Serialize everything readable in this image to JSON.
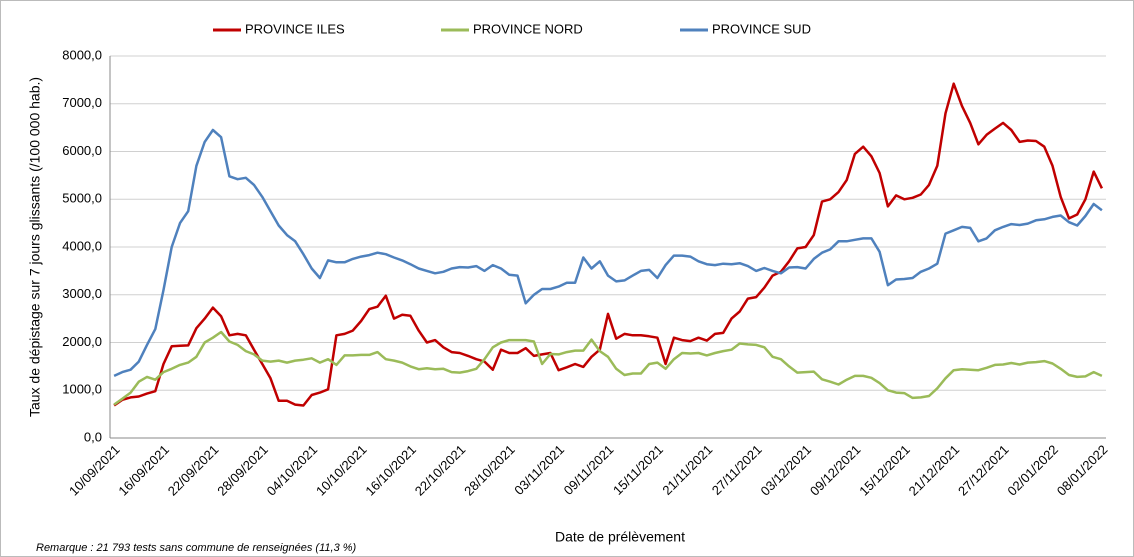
{
  "chart_data": {
    "type": "line",
    "y_label": "Taux de dépistage sur 7 jours glissants (/100 000 hab.)",
    "x_label": "Date de prélèvement",
    "note": "Remarque : 21 793 tests sans commune de renseignées (11,3 %)",
    "categories": [
      "10/09/2021",
      null,
      null,
      null,
      null,
      null,
      "16/09/2021",
      null,
      null,
      null,
      null,
      null,
      "22/09/2021",
      null,
      null,
      null,
      null,
      null,
      "28/09/2021",
      null,
      null,
      null,
      null,
      null,
      "04/10/2021",
      null,
      null,
      null,
      null,
      null,
      "10/10/2021",
      null,
      null,
      null,
      null,
      null,
      "16/10/2021",
      null,
      null,
      null,
      null,
      null,
      "22/10/2021",
      null,
      null,
      null,
      null,
      null,
      "28/10/2021",
      null,
      null,
      null,
      null,
      null,
      "03/11/2021",
      null,
      null,
      null,
      null,
      null,
      "09/11/2021",
      null,
      null,
      null,
      null,
      null,
      "15/11/2021",
      null,
      null,
      null,
      null,
      null,
      "21/11/2021",
      null,
      null,
      null,
      null,
      null,
      "27/11/2021",
      null,
      null,
      null,
      null,
      null,
      "03/12/2021",
      null,
      null,
      null,
      null,
      null,
      "09/12/2021",
      null,
      null,
      null,
      null,
      null,
      "15/12/2021",
      null,
      null,
      null,
      null,
      null,
      "21/12/2021",
      null,
      null,
      null,
      null,
      null,
      "27/12/2021",
      null,
      null,
      null,
      null,
      null,
      "02/01/2022",
      null,
      null,
      null,
      null,
      null,
      "08/01/2022"
    ],
    "series": [
      {
        "name": "PROVINCE ILES",
        "color": "#c00000",
        "values": [
          680,
          800,
          850,
          870,
          930,
          980,
          1550,
          1920,
          1930,
          1940,
          2300,
          2500,
          2730,
          2550,
          2150,
          2180,
          2150,
          1850,
          1550,
          1250,
          780,
          780,
          700,
          680,
          900,
          950,
          1020,
          2150,
          2180,
          2250,
          2450,
          2700,
          2750,
          2980,
          2500,
          2580,
          2560,
          2250,
          2000,
          2050,
          1900,
          1800,
          1780,
          1720,
          1650,
          1600,
          1430,
          1850,
          1780,
          1780,
          1880,
          1720,
          1750,
          1780,
          1420,
          1480,
          1550,
          1490,
          1700,
          1850,
          2600,
          2080,
          2180,
          2150,
          2150,
          2130,
          2100,
          1550,
          2100,
          2050,
          2030,
          2100,
          2040,
          2180,
          2200,
          2500,
          2650,
          2920,
          2950,
          3150,
          3400,
          3480,
          3700,
          3970,
          4000,
          4250,
          4950,
          5000,
          5150,
          5400,
          5950,
          6100,
          5900,
          5550,
          4850,
          5080,
          5000,
          5030,
          5100,
          5300,
          5700,
          6800,
          7420,
          6950,
          6600,
          6150,
          6350,
          6480,
          6600,
          6450,
          6200,
          6230,
          6220,
          6100,
          5700,
          5050,
          4600,
          4680,
          5000,
          5580,
          5230
        ]
      },
      {
        "name": "PROVINCE NORD",
        "color": "#9bbb59",
        "values": [
          700,
          820,
          950,
          1180,
          1280,
          1220,
          1380,
          1450,
          1530,
          1580,
          1700,
          2000,
          2100,
          2220,
          2020,
          1950,
          1820,
          1750,
          1620,
          1600,
          1620,
          1580,
          1620,
          1640,
          1670,
          1580,
          1650,
          1530,
          1730,
          1730,
          1740,
          1740,
          1800,
          1650,
          1620,
          1580,
          1500,
          1440,
          1460,
          1440,
          1450,
          1380,
          1370,
          1400,
          1450,
          1650,
          1900,
          2000,
          2050,
          2050,
          2050,
          2020,
          1550,
          1760,
          1750,
          1800,
          1830,
          1830,
          2060,
          1820,
          1700,
          1450,
          1320,
          1350,
          1350,
          1550,
          1580,
          1450,
          1650,
          1780,
          1770,
          1780,
          1730,
          1780,
          1820,
          1850,
          1980,
          1960,
          1950,
          1900,
          1700,
          1650,
          1500,
          1370,
          1380,
          1390,
          1230,
          1180,
          1120,
          1220,
          1300,
          1300,
          1260,
          1150,
          1000,
          950,
          940,
          840,
          850,
          880,
          1040,
          1250,
          1420,
          1440,
          1430,
          1420,
          1470,
          1530,
          1540,
          1570,
          1540,
          1580,
          1590,
          1610,
          1560,
          1450,
          1320,
          1280,
          1290,
          1380,
          1300
        ]
      },
      {
        "name": "PROVINCE SUD",
        "color": "#4f81bd",
        "values": [
          1300,
          1380,
          1430,
          1600,
          1950,
          2280,
          3100,
          4000,
          4500,
          4750,
          5700,
          6200,
          6450,
          6300,
          5480,
          5420,
          5450,
          5300,
          5050,
          4750,
          4450,
          4250,
          4120,
          3850,
          3550,
          3350,
          3720,
          3680,
          3680,
          3750,
          3800,
          3830,
          3880,
          3850,
          3780,
          3720,
          3640,
          3550,
          3500,
          3450,
          3480,
          3550,
          3580,
          3570,
          3600,
          3500,
          3620,
          3550,
          3420,
          3400,
          2820,
          3000,
          3120,
          3120,
          3170,
          3250,
          3250,
          3780,
          3550,
          3700,
          3400,
          3280,
          3300,
          3400,
          3500,
          3520,
          3350,
          3620,
          3820,
          3820,
          3800,
          3700,
          3640,
          3620,
          3650,
          3640,
          3660,
          3600,
          3500,
          3560,
          3500,
          3450,
          3570,
          3580,
          3550,
          3750,
          3880,
          3950,
          4120,
          4120,
          4150,
          4180,
          4180,
          3900,
          3200,
          3320,
          3330,
          3350,
          3480,
          3550,
          3650,
          4280,
          4350,
          4420,
          4400,
          4120,
          4180,
          4350,
          4420,
          4480,
          4460,
          4490,
          4560,
          4580,
          4630,
          4660,
          4520,
          4450,
          4650,
          4900,
          4770
        ]
      }
    ],
    "ylim": [
      0,
      8000
    ],
    "yticks": [
      {
        "value": 0,
        "label": "0,0"
      },
      {
        "value": 1000,
        "label": "1000,0"
      },
      {
        "value": 2000,
        "label": "2000,0"
      },
      {
        "value": 3000,
        "label": "3000,0"
      },
      {
        "value": 4000,
        "label": "4000,0"
      },
      {
        "value": 5000,
        "label": "5000,0"
      },
      {
        "value": 6000,
        "label": "6000,0"
      },
      {
        "value": 7000,
        "label": "7000,0"
      },
      {
        "value": 8000,
        "label": "8000,0"
      }
    ],
    "grid": true,
    "legend": "top"
  }
}
